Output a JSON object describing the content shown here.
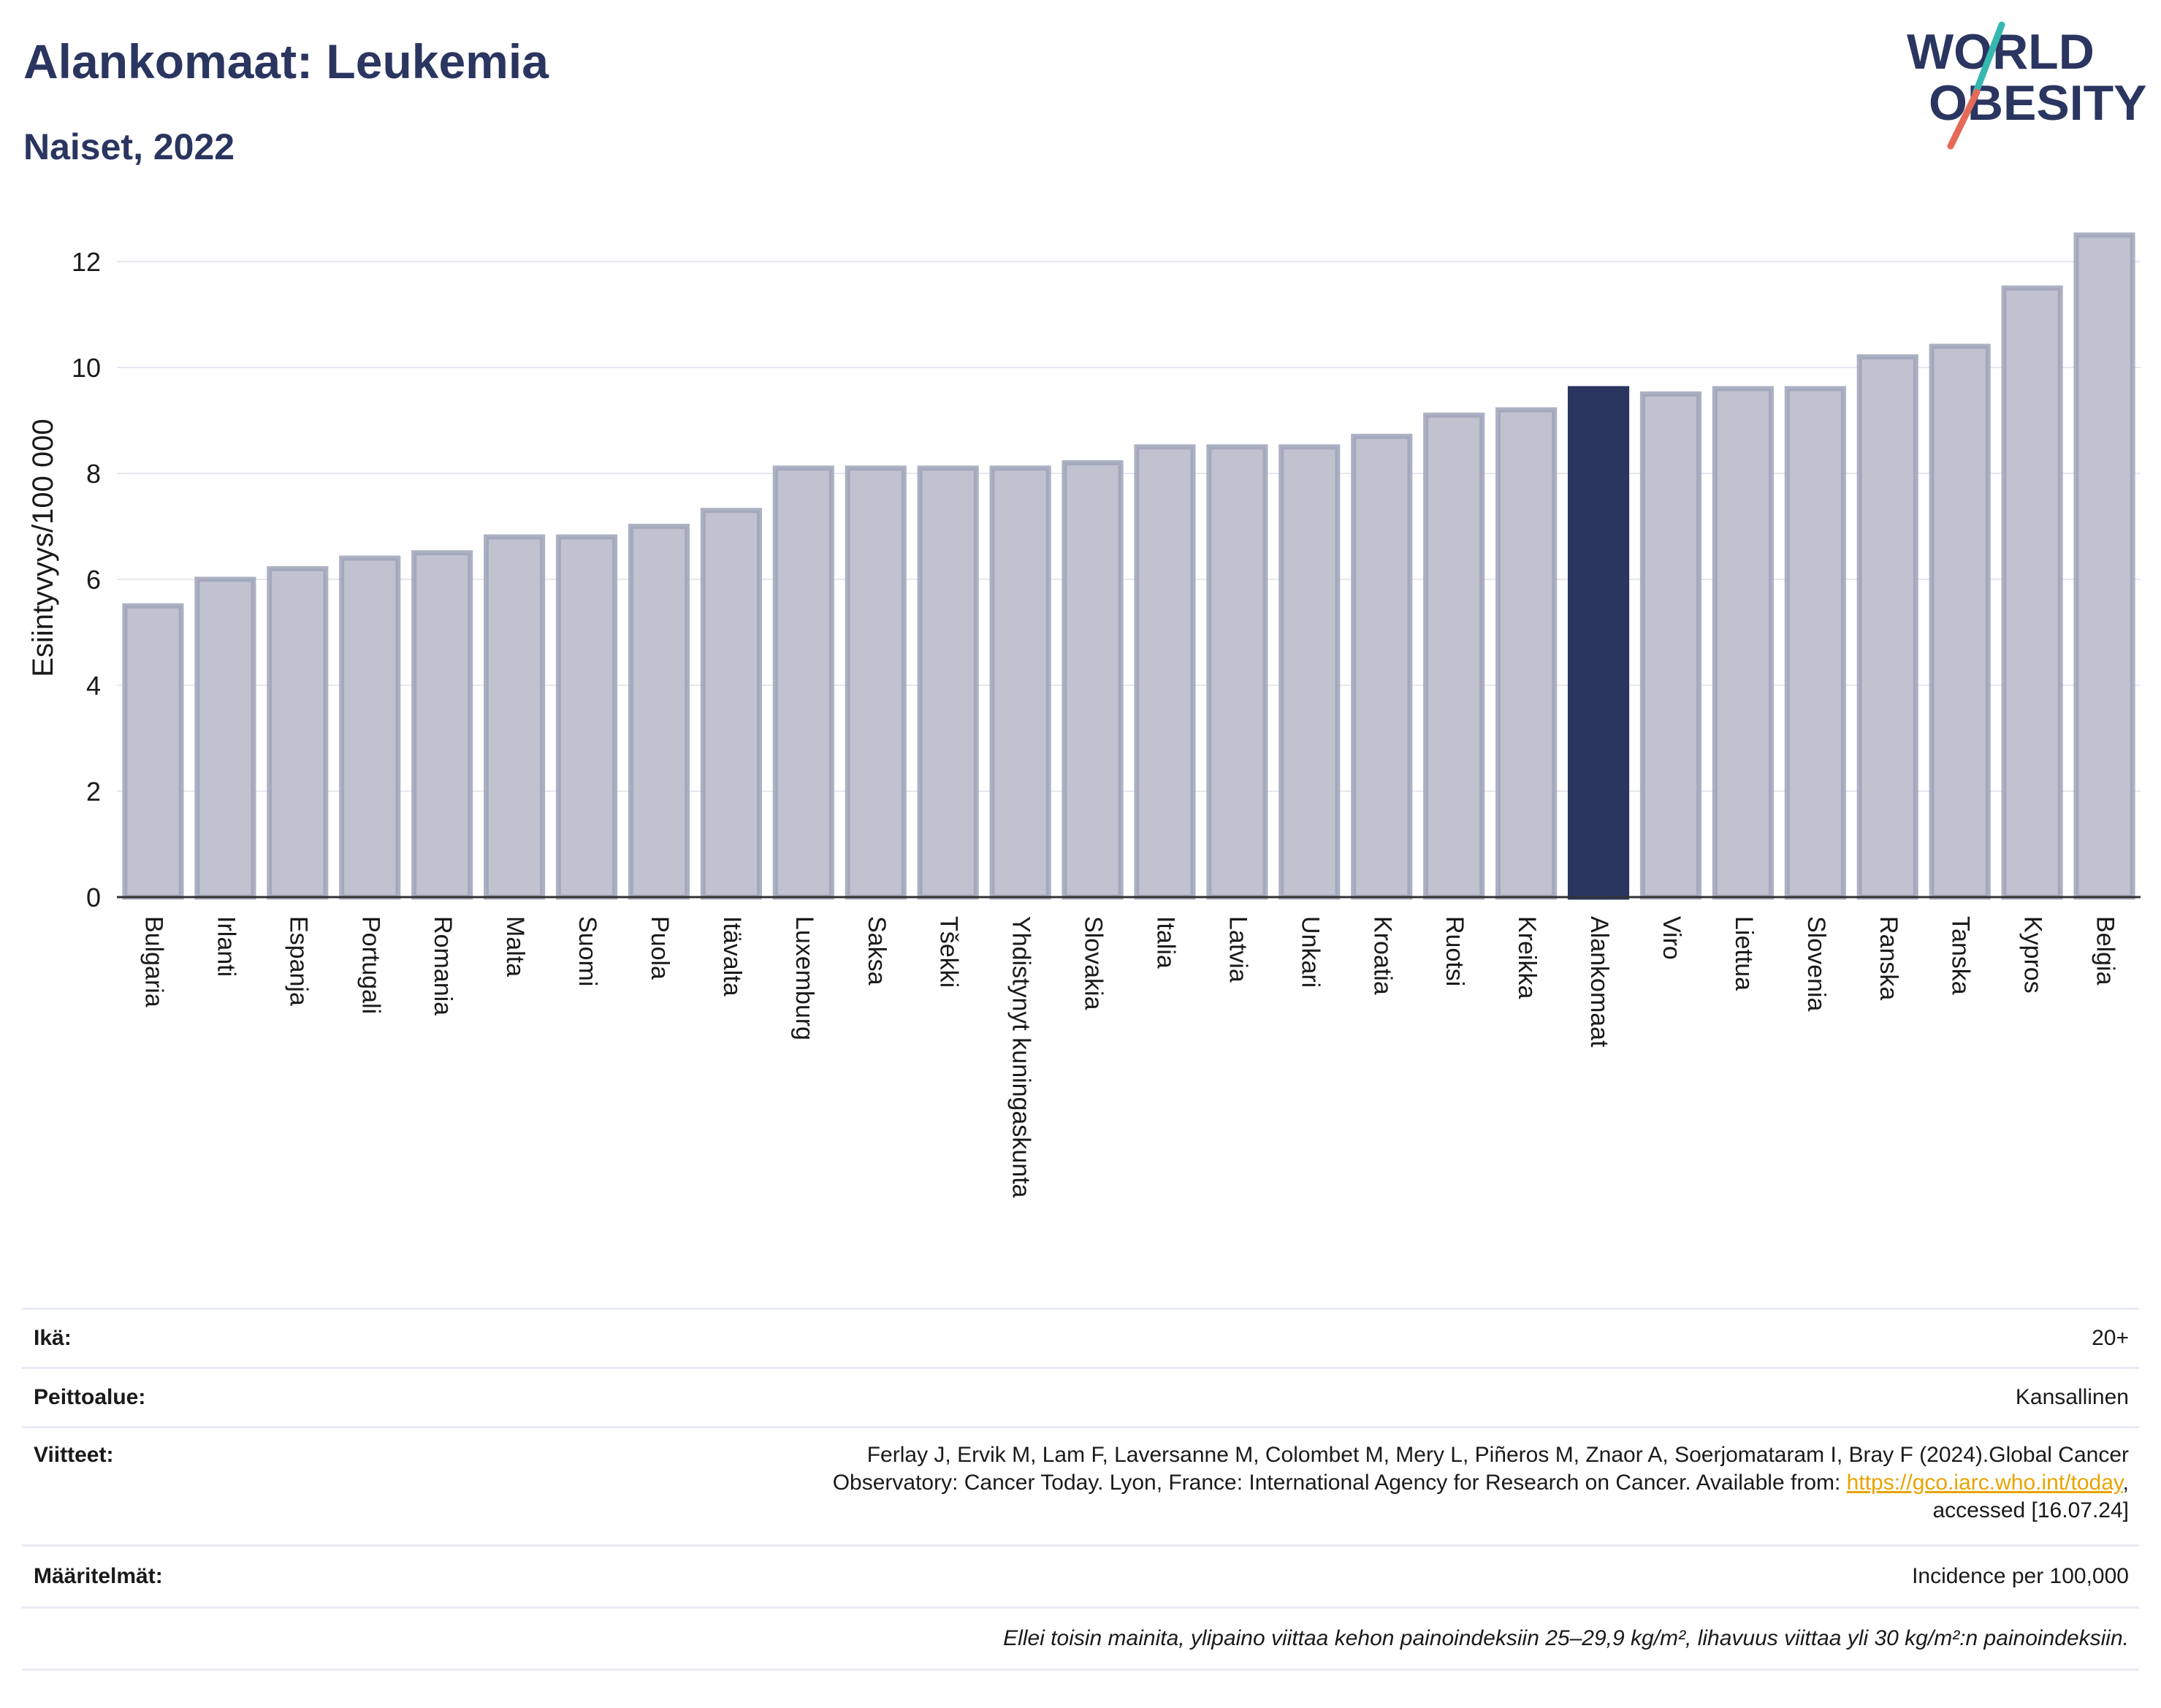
{
  "header": {
    "title": "Alankomaat: Leukemia",
    "subtitle": "Naiset, 2022",
    "logo_line1": "WORLD",
    "logo_line2": "OBESITY"
  },
  "chart_data": {
    "type": "bar",
    "title": "Alankomaat: Leukemia",
    "subtitle": "Naiset, 2022",
    "ylabel": "Esiintyvyys/100 000",
    "xlabel": "",
    "ylim": [
      0,
      13
    ],
    "yticks": [
      0,
      2,
      4,
      6,
      8,
      10,
      12
    ],
    "grid": true,
    "highlight": "Alankomaat",
    "categories": [
      "Bulgaria",
      "Irlanti",
      "Espanja",
      "Portugali",
      "Romania",
      "Malta",
      "Suomi",
      "Puola",
      "Itävalta",
      "Luxemburg",
      "Saksa",
      "Tšekki",
      "Yhdistynyt kuningaskunta",
      "Slovakia",
      "Italia",
      "Latvia",
      "Unkari",
      "Kroatia",
      "Ruotsi",
      "Kreikka",
      "Alankomaat",
      "Viro",
      "Liettua",
      "Slovenia",
      "Ranska",
      "Tanska",
      "Kypros",
      "Belgia"
    ],
    "values": [
      5.5,
      6.0,
      6.2,
      6.4,
      6.5,
      6.8,
      6.8,
      7.0,
      7.3,
      8.1,
      8.1,
      8.1,
      8.1,
      8.2,
      8.5,
      8.5,
      8.5,
      8.7,
      9.1,
      9.2,
      9.6,
      9.5,
      9.6,
      9.6,
      10.2,
      10.4,
      11.5,
      12.5
    ],
    "colors": {
      "default_fill": "#c0c3cf",
      "default_stroke": "#9ea3b8",
      "highlight_fill": "#2a3560"
    }
  },
  "info": {
    "age_label": "Ikä:",
    "age_value": "20+",
    "coverage_label": "Peittoalue:",
    "coverage_value": "Kansallinen",
    "refs_label": "Viitteet:",
    "refs_line1": "Ferlay J, Ervik M, Lam F, Laversanne M, Colombet M, Mery L, Piñeros M, Znaor A, Soerjomataram I, Bray F (2024).Global Cancer",
    "refs_line2_pre": "Observatory: Cancer Today. Lyon, France: International Agency for Research on Cancer. Available from: ",
    "refs_link": "https://gco.iarc.who.int/today",
    "refs_line2_post": ",",
    "refs_line3": "accessed [16.07.24]",
    "defs_label": "Määritelmät:",
    "defs_value": "Incidence per 100,000",
    "note": "Ellei toisin mainita, ylipaino viittaa kehon painoindeksiin 25–29,9 kg/m², lihavuus viittaa yli 30 kg/m²:n painoindeksiin."
  }
}
